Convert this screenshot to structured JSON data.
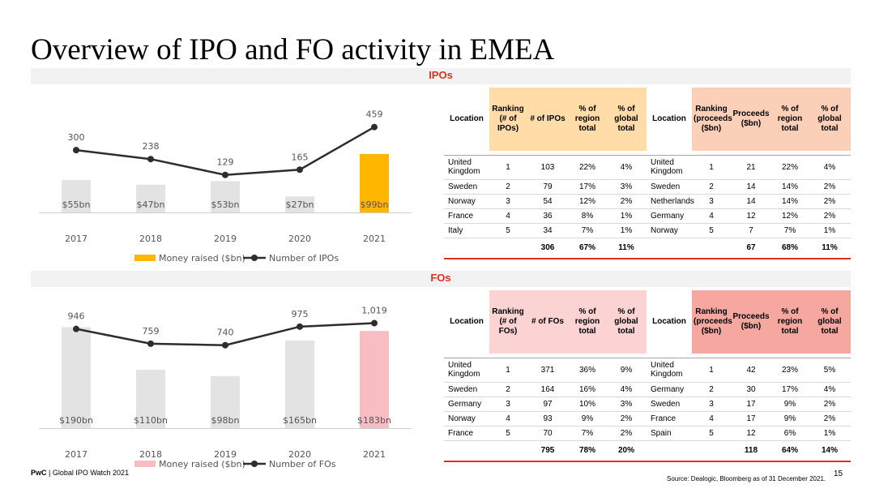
{
  "page": {
    "title": "Overview of IPO and FO activity in EMEA",
    "footer_brand": "PwC",
    "footer_text": " | Global IPO Watch 2021",
    "source": "Source: Dealogic, Bloomberg as of 31 December 2021.",
    "page_number": "15"
  },
  "sections": {
    "ipo_label": "IPOs",
    "fo_label": "FOs"
  },
  "colors": {
    "accent_red": "#e0301e",
    "ipo_highlight": "#ffb600",
    "fo_highlight": "#f7bdc2",
    "bar_gray": "#e3e3e3",
    "line": "#2d2d2d"
  },
  "chart_data": [
    {
      "type": "bar",
      "title": "IPOs",
      "categories": [
        "2017",
        "2018",
        "2019",
        "2020",
        "2021"
      ],
      "series": [
        {
          "name": "Money raised ($bn)",
          "kind": "bar",
          "values": [
            55,
            47,
            53,
            27,
            99
          ],
          "labels": [
            "$55bn",
            "$47bn",
            "$53bn",
            "$27bn",
            "$99bn"
          ],
          "highlight_index": 4
        },
        {
          "name": "Number of IPOs",
          "kind": "line",
          "values": [
            300,
            238,
            129,
            165,
            459
          ],
          "labels": [
            "300",
            "238",
            "129",
            "165",
            "459"
          ]
        }
      ],
      "legend": [
        "Money raised ($bn)",
        "Number of IPOs"
      ],
      "legend_position": "bottom",
      "bar_ylim": [
        0,
        162
      ],
      "line_ylim": [
        -130,
        530
      ]
    },
    {
      "type": "bar",
      "title": "FOs",
      "categories": [
        "2017",
        "2018",
        "2019",
        "2020",
        "2021"
      ],
      "series": [
        {
          "name": "Money raised ($bn)",
          "kind": "bar",
          "values": [
            190,
            110,
            98,
            165,
            183
          ],
          "labels": [
            "$190bn",
            "$110bn",
            "$98bn",
            "$165bn",
            "$183bn"
          ],
          "highlight_index": 4
        },
        {
          "name": "Number of FOs",
          "kind": "line",
          "values": [
            946,
            759,
            740,
            975,
            1019
          ],
          "labels": [
            "946",
            "759",
            "740",
            "975",
            "1,019"
          ]
        }
      ],
      "legend": [
        "Money raised ($bn)",
        "Number of FOs"
      ],
      "legend_position": "bottom",
      "bar_ylim": [
        0,
        229
      ],
      "line_ylim": [
        -310,
        1230
      ]
    }
  ],
  "ipo_table": {
    "headers": {
      "location": "Location",
      "ranking": "Ranking",
      "ranking_sub_left": "(# of IPOs)",
      "count": "# of IPOs",
      "pct_region": "% of region total",
      "pct_global": "% of global total",
      "ranking_sub_right": "(proceeds ($bn)",
      "proceeds": "Proceeds ($bn)"
    },
    "rows": [
      {
        "loc_l": "United Kingdom",
        "rank_l": "1",
        "count": "103",
        "reg_l": "22%",
        "glob_l": "4%",
        "loc_r": "United Kingdom",
        "rank_r": "1",
        "proceeds": "21",
        "reg_r": "22%",
        "glob_r": "4%"
      },
      {
        "loc_l": "Sweden",
        "rank_l": "2",
        "count": "79",
        "reg_l": "17%",
        "glob_l": "3%",
        "loc_r": "Sweden",
        "rank_r": "2",
        "proceeds": "14",
        "reg_r": "14%",
        "glob_r": "2%"
      },
      {
        "loc_l": "Norway",
        "rank_l": "3",
        "count": "54",
        "reg_l": "12%",
        "glob_l": "2%",
        "loc_r": "Netherlands",
        "rank_r": "3",
        "proceeds": "14",
        "reg_r": "14%",
        "glob_r": "2%"
      },
      {
        "loc_l": "France",
        "rank_l": "4",
        "count": "36",
        "reg_l": "8%",
        "glob_l": "1%",
        "loc_r": "Germany",
        "rank_r": "4",
        "proceeds": "12",
        "reg_r": "12%",
        "glob_r": "2%"
      },
      {
        "loc_l": "Italy",
        "rank_l": "5",
        "count": "34",
        "reg_l": "7%",
        "glob_l": "1%",
        "loc_r": "Norway",
        "rank_r": "5",
        "proceeds": "7",
        "reg_r": "7%",
        "glob_r": "1%"
      }
    ],
    "totals": {
      "count": "306",
      "reg_l": "67%",
      "glob_l": "11%",
      "proceeds": "67",
      "reg_r": "68%",
      "glob_r": "11%"
    }
  },
  "fo_table": {
    "headers": {
      "location": "Location",
      "ranking": "Ranking",
      "ranking_sub_left": "(# of FOs)",
      "count": "# of FOs",
      "pct_region": "% of region total",
      "pct_global": "% of global total",
      "ranking_sub_right": "(proceeds ($bn)",
      "proceeds": "Proceeds ($bn)"
    },
    "rows": [
      {
        "loc_l": "United Kingdom",
        "rank_l": "1",
        "count": "371",
        "reg_l": "36%",
        "glob_l": "9%",
        "loc_r": "United Kingdom",
        "rank_r": "1",
        "proceeds": "42",
        "reg_r": "23%",
        "glob_r": "5%"
      },
      {
        "loc_l": "Sweden",
        "rank_l": "2",
        "count": "164",
        "reg_l": "16%",
        "glob_l": "4%",
        "loc_r": "Germany",
        "rank_r": "2",
        "proceeds": "30",
        "reg_r": "17%",
        "glob_r": "4%"
      },
      {
        "loc_l": "Germany",
        "rank_l": "3",
        "count": "97",
        "reg_l": "10%",
        "glob_l": "3%",
        "loc_r": "Sweden",
        "rank_r": "3",
        "proceeds": "17",
        "reg_r": "9%",
        "glob_r": "2%"
      },
      {
        "loc_l": "Norway",
        "rank_l": "4",
        "count": "93",
        "reg_l": "9%",
        "glob_l": "2%",
        "loc_r": "France",
        "rank_r": "4",
        "proceeds": "17",
        "reg_r": "9%",
        "glob_r": "2%"
      },
      {
        "loc_l": "France",
        "rank_l": "5",
        "count": "70",
        "reg_l": "7%",
        "glob_l": "2%",
        "loc_r": "Spain",
        "rank_r": "5",
        "proceeds": "12",
        "reg_r": "6%",
        "glob_r": "1%"
      }
    ],
    "totals": {
      "count": "795",
      "reg_l": "78%",
      "glob_l": "20%",
      "proceeds": "118",
      "reg_r": "64%",
      "glob_r": "14%"
    }
  }
}
